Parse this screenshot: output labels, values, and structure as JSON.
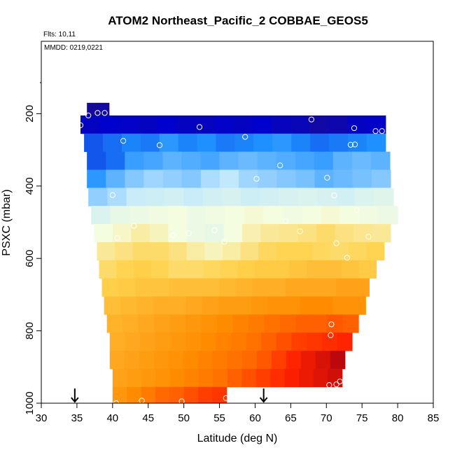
{
  "chart_data": {
    "type": "heatmap",
    "title": "ATOM2 Northeast_Pacific_2 COBBAE_GEOS5",
    "flights_label": "Flts: 10,11",
    "dates_label": "MMDD: 0219,0221",
    "xlabel": "Latitude (deg N)",
    "ylabel": "PSXC (mbar)",
    "xlim": [
      30,
      85
    ],
    "ylim": [
      1000,
      0
    ],
    "y_inverted": true,
    "grid": false,
    "x_ticks": [
      "30",
      "35",
      "40",
      "45",
      "50",
      "55",
      "60",
      "65",
      "70",
      "75",
      "80",
      "85"
    ],
    "x_tick_values": [
      30,
      35,
      40,
      45,
      50,
      55,
      60,
      65,
      70,
      75,
      80,
      85
    ],
    "y_ticks": [
      "200",
      "400",
      "600",
      "800",
      "1000"
    ],
    "y_tick_values": [
      200,
      400,
      600,
      800,
      1000
    ],
    "color_scale": [
      "#1a0d8c",
      "#0000d0",
      "#1e90ff",
      "#bfe8ff",
      "#f5fde0",
      "#ffd24d",
      "#ff8c00",
      "#ff2000",
      "#a50010"
    ],
    "bands": [
      {
        "p_top": 170,
        "p_bot": 205,
        "lat_start": 36.4,
        "lat_end": 39.5,
        "values": [
          0.02,
          0.04
        ]
      },
      {
        "p_top": 205,
        "p_bot": 255,
        "lat_start": 35.5,
        "lat_end": 78.3,
        "values": [
          0.1,
          0.12,
          0.11,
          0.1,
          0.12,
          0.1,
          0.09,
          0.11,
          0.1,
          0.12,
          0.09,
          0.08,
          0.05,
          0.06,
          0.1,
          0.11
        ]
      },
      {
        "p_top": 255,
        "p_bot": 305,
        "lat_start": 36.0,
        "lat_end": 78.3,
        "values": [
          0.2,
          0.22,
          0.24,
          0.23,
          0.26,
          0.24,
          0.25,
          0.23,
          0.24,
          0.25,
          0.26,
          0.24,
          0.22,
          0.23,
          0.24,
          0.25
        ]
      },
      {
        "p_top": 305,
        "p_bot": 355,
        "lat_start": 36.4,
        "lat_end": 78.9,
        "values": [
          0.2,
          0.22,
          0.27,
          0.28,
          0.3,
          0.29,
          0.28,
          0.3,
          0.31,
          0.3,
          0.29,
          0.28,
          0.27,
          0.3,
          0.31,
          0.3
        ]
      },
      {
        "p_top": 355,
        "p_bot": 405,
        "lat_start": 36.4,
        "lat_end": 79.0,
        "values": [
          0.26,
          0.3,
          0.33,
          0.35,
          0.34,
          0.33,
          0.36,
          0.38,
          0.35,
          0.34,
          0.33,
          0.32,
          0.3,
          0.31,
          0.32,
          0.33
        ]
      },
      {
        "p_top": 405,
        "p_bot": 455,
        "lat_start": 36.6,
        "lat_end": 79.4,
        "values": [
          0.34,
          0.36,
          0.4,
          0.41,
          0.42,
          0.4,
          0.42,
          0.43,
          0.41,
          0.42,
          0.43,
          0.44,
          0.43,
          0.42,
          0.44,
          0.45
        ]
      },
      {
        "p_top": 455,
        "p_bot": 505,
        "lat_start": 37.0,
        "lat_end": 80.0,
        "values": [
          0.44,
          0.47,
          0.48,
          0.49,
          0.5,
          0.48,
          0.49,
          0.5,
          0.51,
          0.5,
          0.49,
          0.5,
          0.51,
          0.5,
          0.49,
          0.48
        ]
      },
      {
        "p_top": 505,
        "p_bot": 555,
        "lat_start": 37.4,
        "lat_end": 79.0,
        "values": [
          0.5,
          0.52,
          0.55,
          0.53,
          0.5,
          0.48,
          0.47,
          0.5,
          0.54,
          0.56,
          0.57,
          0.58,
          0.6,
          0.58,
          0.57,
          0.56
        ]
      },
      {
        "p_top": 555,
        "p_bot": 605,
        "lat_start": 37.8,
        "lat_end": 78.1,
        "values": [
          0.56,
          0.58,
          0.6,
          0.6,
          0.58,
          0.55,
          0.53,
          0.55,
          0.58,
          0.61,
          0.62,
          0.62,
          0.61,
          0.6,
          0.61,
          0.62
        ]
      },
      {
        "p_top": 605,
        "p_bot": 655,
        "lat_start": 38.1,
        "lat_end": 77.0,
        "values": [
          0.6,
          0.62,
          0.63,
          0.62,
          0.6,
          0.6,
          0.61,
          0.62,
          0.63,
          0.64,
          0.64,
          0.65,
          0.66,
          0.66,
          0.65,
          0.64
        ]
      },
      {
        "p_top": 655,
        "p_bot": 705,
        "lat_start": 38.5,
        "lat_end": 76.0,
        "values": [
          0.63,
          0.64,
          0.65,
          0.65,
          0.66,
          0.66,
          0.66,
          0.67,
          0.68,
          0.69,
          0.69,
          0.7,
          0.7,
          0.7,
          0.71,
          0.71
        ]
      },
      {
        "p_top": 705,
        "p_bot": 755,
        "lat_start": 38.8,
        "lat_end": 75.5,
        "values": [
          0.66,
          0.67,
          0.68,
          0.69,
          0.69,
          0.7,
          0.71,
          0.72,
          0.72,
          0.73,
          0.74,
          0.74,
          0.75,
          0.75,
          0.74,
          0.74
        ]
      },
      {
        "p_top": 755,
        "p_bot": 805,
        "lat_start": 39.2,
        "lat_end": 74.5,
        "values": [
          0.68,
          0.69,
          0.7,
          0.71,
          0.72,
          0.73,
          0.74,
          0.75,
          0.76,
          0.77,
          0.78,
          0.79,
          0.8,
          0.8,
          0.81,
          0.8
        ]
      },
      {
        "p_top": 805,
        "p_bot": 855,
        "lat_start": 39.6,
        "lat_end": 73.6,
        "values": [
          0.69,
          0.7,
          0.71,
          0.72,
          0.73,
          0.74,
          0.75,
          0.76,
          0.77,
          0.78,
          0.8,
          0.82,
          0.84,
          0.85,
          0.86,
          0.87
        ]
      },
      {
        "p_top": 855,
        "p_bot": 905,
        "lat_start": 39.6,
        "lat_end": 72.6,
        "values": [
          0.7,
          0.71,
          0.72,
          0.73,
          0.74,
          0.75,
          0.76,
          0.77,
          0.78,
          0.79,
          0.81,
          0.84,
          0.87,
          0.9,
          0.93,
          0.97
        ]
      },
      {
        "p_top": 905,
        "p_bot": 955,
        "lat_start": 40.0,
        "lat_end": 72.2,
        "values": [
          0.71,
          0.72,
          0.73,
          0.74,
          0.75,
          0.76,
          0.77,
          0.78,
          0.8,
          0.82,
          0.84,
          0.86,
          0.88,
          0.9,
          0.92,
          0.94
        ]
      },
      {
        "p_top": 955,
        "p_bot": 1000,
        "lat_start": 40.0,
        "lat_end": 56.0,
        "values": [
          0.73,
          0.75,
          0.77,
          0.79,
          0.8,
          0.82,
          0.84,
          0.85
        ]
      }
    ],
    "points": [
      {
        "lat": 35.5,
        "p": 232
      },
      {
        "lat": 36.6,
        "p": 205
      },
      {
        "lat": 37.9,
        "p": 198
      },
      {
        "lat": 38.9,
        "p": 198
      },
      {
        "lat": 52.2,
        "p": 237
      },
      {
        "lat": 67.9,
        "p": 216
      },
      {
        "lat": 73.9,
        "p": 240
      },
      {
        "lat": 76.9,
        "p": 248
      },
      {
        "lat": 77.8,
        "p": 248
      },
      {
        "lat": 41.5,
        "p": 275
      },
      {
        "lat": 46.6,
        "p": 287
      },
      {
        "lat": 58.6,
        "p": 264
      },
      {
        "lat": 73.4,
        "p": 286
      },
      {
        "lat": 74.0,
        "p": 285
      },
      {
        "lat": 63.5,
        "p": 343
      },
      {
        "lat": 60.2,
        "p": 380
      },
      {
        "lat": 70.1,
        "p": 377
      },
      {
        "lat": 40.0,
        "p": 425
      },
      {
        "lat": 71.1,
        "p": 426
      },
      {
        "lat": 74.3,
        "p": 467
      },
      {
        "lat": 43.0,
        "p": 510
      },
      {
        "lat": 64.3,
        "p": 497
      },
      {
        "lat": 54.3,
        "p": 522
      },
      {
        "lat": 50.7,
        "p": 530
      },
      {
        "lat": 48.5,
        "p": 536
      },
      {
        "lat": 66.3,
        "p": 525
      },
      {
        "lat": 40.7,
        "p": 543
      },
      {
        "lat": 55.7,
        "p": 554
      },
      {
        "lat": 71.4,
        "p": 558
      },
      {
        "lat": 75.9,
        "p": 540
      },
      {
        "lat": 72.9,
        "p": 598
      },
      {
        "lat": 70.7,
        "p": 782
      },
      {
        "lat": 70.6,
        "p": 812
      },
      {
        "lat": 70.4,
        "p": 950
      },
      {
        "lat": 71.4,
        "p": 948
      },
      {
        "lat": 71.9,
        "p": 940
      },
      {
        "lat": 55.9,
        "p": 986
      },
      {
        "lat": 44.1,
        "p": 993
      },
      {
        "lat": 49.7,
        "p": 995
      },
      {
        "lat": 40.5,
        "p": 1000
      }
    ],
    "arrows": [
      34.7,
      61.2
    ]
  }
}
